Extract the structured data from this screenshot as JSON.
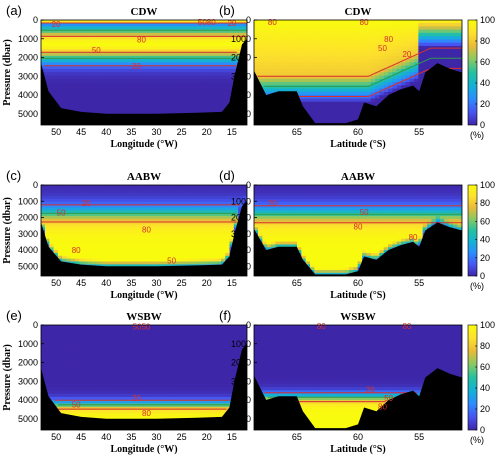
{
  "figure": {
    "cb_ticks": [
      0,
      20,
      40,
      60,
      80,
      100
    ],
    "cb_unit": "(%)",
    "colormap": [
      "#3e26a8",
      "#4755f1",
      "#2c8cfd",
      "#15b1d5",
      "#25c0a0",
      "#88c964",
      "#e8bb39",
      "#fde12c",
      "#f9fb0e"
    ],
    "contour_color": "#d7302c",
    "contour_mid_color": "#2e9a4b",
    "bathymetry_color": "#000000",
    "ylabel": "Pressure (dbar)",
    "y_ticks": [
      0,
      1000,
      2000,
      3000,
      4000,
      5000
    ]
  },
  "chart_data": [
    {
      "type": "heatmap",
      "tag": "(a)",
      "title": "CDW",
      "xlabel": "Longitude (°W)",
      "x_ticks": [
        50,
        45,
        40,
        35,
        30,
        25,
        20,
        15
      ],
      "xlim": [
        53,
        12
      ],
      "ylim": [
        0,
        5600
      ],
      "contour_levels": [
        20,
        50,
        80
      ],
      "field": {
        "kind": "cdw",
        "core_center": 1300,
        "core_halfwidth": 600
      },
      "seafloor": [
        [
          53,
          2300
        ],
        [
          51.5,
          3800
        ],
        [
          49,
          4700
        ],
        [
          45,
          4900
        ],
        [
          40,
          5000
        ],
        [
          30,
          5000
        ],
        [
          22,
          4950
        ],
        [
          17,
          4900
        ],
        [
          15.5,
          4400
        ],
        [
          14.5,
          3000
        ],
        [
          13,
          1300
        ],
        [
          12,
          1000
        ]
      ],
      "contour_labels": [
        {
          "text": "20",
          "x": 50,
          "y": 200
        },
        {
          "text": "80",
          "x": 33,
          "y": 1050
        },
        {
          "text": "50",
          "x": 42,
          "y": 1600
        },
        {
          "text": "20",
          "x": 34,
          "y": 2450
        },
        {
          "text": "5080",
          "x": 20,
          "y": 100
        },
        {
          "text": "20",
          "x": 15,
          "y": 150
        }
      ]
    },
    {
      "type": "heatmap",
      "tag": "(b)",
      "title": "CDW",
      "xlabel": "Latitude (°S)",
      "x_ticks": [
        65,
        60,
        55
      ],
      "xlim": [
        68.5,
        51.5
      ],
      "ylim": [
        0,
        5600
      ],
      "contour_levels": [
        20,
        50,
        80
      ],
      "field": {
        "kind": "cdw-b"
      },
      "seafloor": [
        [
          68.5,
          2700
        ],
        [
          67.5,
          4000
        ],
        [
          66.5,
          3800
        ],
        [
          65,
          3800
        ],
        [
          64.5,
          4600
        ],
        [
          63.5,
          5500
        ],
        [
          61,
          5500
        ],
        [
          60,
          5300
        ],
        [
          59.5,
          4400
        ],
        [
          58.5,
          4600
        ],
        [
          57.5,
          4000
        ],
        [
          56.5,
          3700
        ],
        [
          55.5,
          3500
        ],
        [
          55,
          3800
        ],
        [
          54.5,
          2800
        ],
        [
          53.5,
          2300
        ],
        [
          52.5,
          2600
        ],
        [
          51.5,
          2800
        ]
      ],
      "contour_labels": [
        {
          "text": "80",
          "x": 67,
          "y": 100
        },
        {
          "text": "80",
          "x": 59.5,
          "y": 100
        },
        {
          "text": "80",
          "x": 57.5,
          "y": 1000
        },
        {
          "text": "50",
          "x": 58,
          "y": 1500
        },
        {
          "text": "20",
          "x": 56,
          "y": 1800
        }
      ]
    },
    {
      "type": "heatmap",
      "tag": "(c)",
      "title": "AABW",
      "xlabel": "Longitude (°W)",
      "x_ticks": [
        50,
        45,
        40,
        35,
        30,
        25,
        20,
        15
      ],
      "xlim": [
        53,
        12
      ],
      "ylim": [
        0,
        5600
      ],
      "contour_levels": [
        20,
        50,
        80
      ],
      "field": {
        "kind": "aabw",
        "d20": 1000,
        "d50": 1750,
        "d80": 2800
      },
      "seafloor": [
        [
          53,
          2300
        ],
        [
          51.5,
          3800
        ],
        [
          49,
          4700
        ],
        [
          45,
          4900
        ],
        [
          40,
          5000
        ],
        [
          30,
          5000
        ],
        [
          22,
          4950
        ],
        [
          17,
          4900
        ],
        [
          15.5,
          4400
        ],
        [
          14.5,
          3000
        ],
        [
          13,
          1300
        ],
        [
          12,
          1000
        ]
      ],
      "contour_labels": [
        {
          "text": "20",
          "x": 44,
          "y": 1100
        },
        {
          "text": "50",
          "x": 49,
          "y": 1700
        },
        {
          "text": "80",
          "x": 32,
          "y": 2750
        },
        {
          "text": "80",
          "x": 46,
          "y": 4000
        },
        {
          "text": "50",
          "x": 27,
          "y": 4650
        }
      ]
    },
    {
      "type": "heatmap",
      "tag": "(d)",
      "title": "AABW",
      "xlabel": "Latitude (°S)",
      "x_ticks": [
        65,
        60,
        55
      ],
      "xlim": [
        68.5,
        51.5
      ],
      "ylim": [
        0,
        5600
      ],
      "contour_levels": [
        20,
        50,
        80
      ],
      "field": {
        "kind": "aabw",
        "d20": 1100,
        "d50": 1800,
        "d80": 2600
      },
      "seafloor": [
        [
          68.5,
          2700
        ],
        [
          67.5,
          4000
        ],
        [
          66.5,
          3800
        ],
        [
          65,
          3800
        ],
        [
          64.5,
          4600
        ],
        [
          63.5,
          5500
        ],
        [
          61,
          5500
        ],
        [
          60,
          5300
        ],
        [
          59.5,
          4400
        ],
        [
          58.5,
          4600
        ],
        [
          57.5,
          4000
        ],
        [
          56.5,
          3700
        ],
        [
          55.5,
          3500
        ],
        [
          55,
          3800
        ],
        [
          54.5,
          2800
        ],
        [
          53.5,
          2300
        ],
        [
          52.5,
          2600
        ],
        [
          51.5,
          2800
        ]
      ],
      "contour_labels": [
        {
          "text": "20",
          "x": 67,
          "y": 1100
        },
        {
          "text": "50",
          "x": 59.5,
          "y": 1650
        },
        {
          "text": "80",
          "x": 60,
          "y": 2550
        },
        {
          "text": "80",
          "x": 55.5,
          "y": 3200
        }
      ]
    },
    {
      "type": "heatmap",
      "tag": "(e)",
      "title": "WSBW",
      "xlabel": "Longitude (°W)",
      "x_ticks": [
        50,
        45,
        40,
        35,
        30,
        25,
        20,
        15
      ],
      "xlim": [
        53,
        12
      ],
      "ylim": [
        0,
        5600
      ],
      "contour_levels": [
        20,
        50,
        80
      ],
      "field": {
        "kind": "wsbw",
        "d20": 3900,
        "d50": 4250,
        "d80": 4600
      },
      "seafloor": [
        [
          53,
          2300
        ],
        [
          51.5,
          3800
        ],
        [
          49,
          4700
        ],
        [
          45,
          4900
        ],
        [
          40,
          5000
        ],
        [
          30,
          5000
        ],
        [
          22,
          4950
        ],
        [
          17,
          4900
        ],
        [
          15.5,
          4400
        ],
        [
          14.5,
          3000
        ],
        [
          13,
          1300
        ],
        [
          12,
          1000
        ]
      ],
      "contour_labels": [
        {
          "text": "5050",
          "x": 33,
          "y": 80
        },
        {
          "text": "20",
          "x": 34,
          "y": 3900
        },
        {
          "text": "50",
          "x": 46,
          "y": 4250
        },
        {
          "text": "80",
          "x": 32,
          "y": 4700
        }
      ]
    },
    {
      "type": "heatmap",
      "tag": "(f)",
      "title": "WSBW",
      "xlabel": "Latitude (°S)",
      "x_ticks": [
        65,
        60,
        55
      ],
      "xlim": [
        68.5,
        51.5
      ],
      "ylim": [
        0,
        5600
      ],
      "contour_levels": [
        20,
        50,
        80
      ],
      "field": {
        "kind": "wsbw",
        "d20": 3500,
        "d50": 3850,
        "d80": 4200
      },
      "seafloor": [
        [
          68.5,
          2700
        ],
        [
          67.5,
          4000
        ],
        [
          66.5,
          3800
        ],
        [
          65,
          3800
        ],
        [
          64.5,
          4600
        ],
        [
          63.5,
          5500
        ],
        [
          61,
          5500
        ],
        [
          60,
          5300
        ],
        [
          59.5,
          4400
        ],
        [
          58.5,
          4600
        ],
        [
          57.5,
          4000
        ],
        [
          56.5,
          3700
        ],
        [
          55.5,
          3500
        ],
        [
          55,
          3800
        ],
        [
          54.5,
          2800
        ],
        [
          53.5,
          2300
        ],
        [
          52.5,
          2600
        ],
        [
          51.5,
          2800
        ]
      ],
      "contour_labels": [
        {
          "text": "80",
          "x": 63,
          "y": 50
        },
        {
          "text": "80",
          "x": 56,
          "y": 50
        },
        {
          "text": "20",
          "x": 59,
          "y": 3450
        },
        {
          "text": "50",
          "x": 57.5,
          "y": 3900
        },
        {
          "text": "80",
          "x": 58,
          "y": 4350
        }
      ]
    }
  ]
}
